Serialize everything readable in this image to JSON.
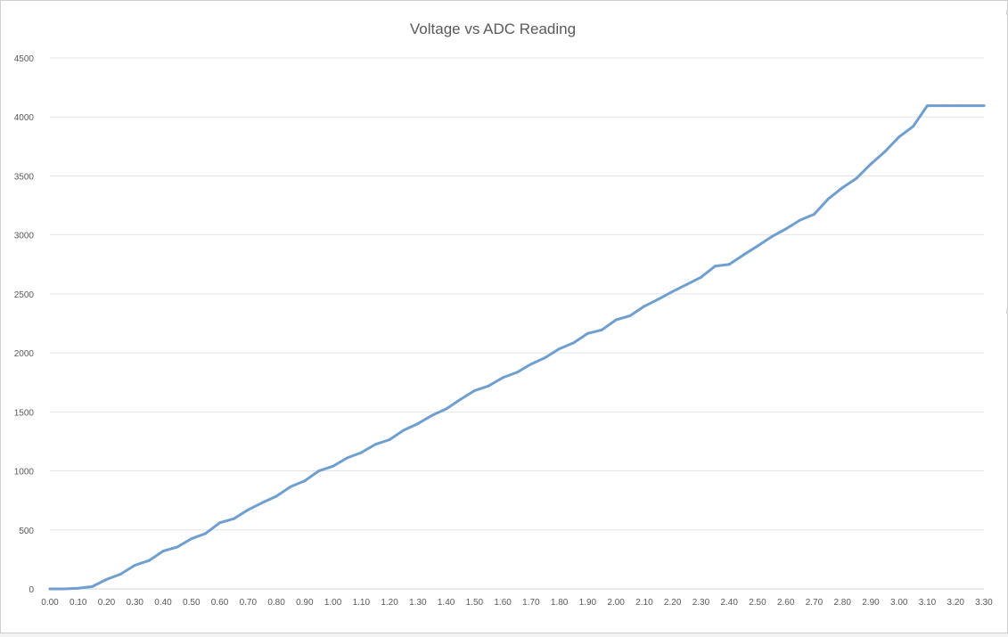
{
  "chart_data": {
    "type": "line",
    "title": "Voltage vs ADC Reading",
    "xlabel": "",
    "ylabel": "",
    "grid": true,
    "legend": "none",
    "ylim": [
      0,
      4500
    ],
    "xlim": [
      0,
      3.3
    ],
    "y_ticks": [
      "0",
      "500",
      "1000",
      "1500",
      "2000",
      "2500",
      "3000",
      "3500",
      "4000",
      "4500"
    ],
    "x_ticks": [
      "0.00",
      "0.10",
      "0.20",
      "0.30",
      "0.40",
      "0.50",
      "0.60",
      "0.70",
      "0.80",
      "0.90",
      "1.00",
      "1.10",
      "1.20",
      "1.30",
      "1.40",
      "1.50",
      "1.60",
      "1.70",
      "1.80",
      "1.90",
      "2.00",
      "2.10",
      "2.20",
      "2.30",
      "2.40",
      "2.50",
      "2.60",
      "2.70",
      "2.80",
      "2.90",
      "3.00",
      "3.10",
      "3.20",
      "3.30"
    ],
    "x_categories": [
      "0.00",
      "0.05",
      "0.10",
      "0.15",
      "0.20",
      "0.25",
      "0.30",
      "0.35",
      "0.40",
      "0.45",
      "0.50",
      "0.55",
      "0.60",
      "0.65",
      "0.70",
      "0.75",
      "0.80",
      "0.85",
      "0.90",
      "0.95",
      "1.00",
      "1.05",
      "1.10",
      "1.15",
      "1.20",
      "1.25",
      "1.30",
      "1.35",
      "1.40",
      "1.45",
      "1.50",
      "1.55",
      "1.60",
      "1.65",
      "1.70",
      "1.75",
      "1.80",
      "1.85",
      "1.90",
      "1.95",
      "2.00",
      "2.05",
      "2.10",
      "2.15",
      "2.20",
      "2.25",
      "2.30",
      "2.35",
      "2.40",
      "2.45",
      "2.50",
      "2.55",
      "2.60",
      "2.65",
      "2.70",
      "2.75",
      "2.80",
      "2.85",
      "2.90",
      "2.95",
      "3.00",
      "3.05",
      "3.10",
      "3.15",
      "3.20",
      "3.25",
      "3.30"
    ],
    "series": [
      {
        "color": "#6f9fcf",
        "values": [
          0,
          0,
          5,
          20,
          80,
          125,
          200,
          240,
          320,
          355,
          425,
          470,
          560,
          595,
          670,
          730,
          785,
          865,
          915,
          1000,
          1040,
          1110,
          1155,
          1225,
          1265,
          1345,
          1400,
          1470,
          1525,
          1605,
          1680,
          1720,
          1790,
          1835,
          1905,
          1960,
          2035,
          2085,
          2165,
          2195,
          2280,
          2315,
          2395,
          2455,
          2520,
          2580,
          2640,
          2735,
          2750,
          2830,
          2905,
          2985,
          3050,
          3125,
          3175,
          3305,
          3400,
          3480,
          3600,
          3705,
          3830,
          3920,
          4095,
          4095,
          4095,
          4095,
          4095
        ]
      }
    ]
  }
}
